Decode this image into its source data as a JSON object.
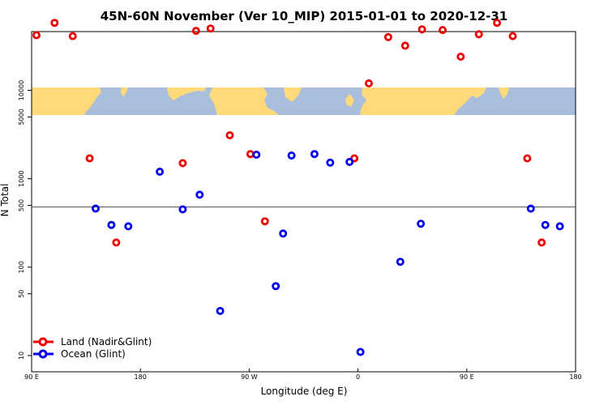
{
  "chart_data": {
    "type": "scatter",
    "title": "45N-60N November (Ver 10_MIP)   2015-01-01 to 2020-12-31",
    "xlabel": "Longitude (deg E)",
    "ylabel": "N Total",
    "x_scale": "linear",
    "y_scale": "log",
    "xlim": [
      90,
      180
    ],
    "x_ticks": [
      {
        "label": "90 E",
        "pos": 0
      },
      {
        "label": "180",
        "pos": 1
      },
      {
        "label": "90 W",
        "pos": 2
      },
      {
        "label": "0",
        "pos": 3
      },
      {
        "label": "90 E",
        "pos": 4
      },
      {
        "label": "180",
        "pos": 5
      }
    ],
    "y_ticks": [
      10,
      50,
      100,
      500,
      1000,
      5000,
      10000
    ],
    "reference_line_y": 500,
    "map_strip": {
      "lat_range": "45N-60N",
      "land_color": "#FFD97A",
      "ocean_color": "#A9BEDB"
    },
    "grid": false,
    "legend_position": "bottom-left",
    "series": [
      {
        "name": "Land (Nadir&Glint)",
        "color": "#EE0000",
        "points": [
          {
            "lon": 94,
            "n": 42000
          },
          {
            "lon": 109,
            "n": 58000
          },
          {
            "lon": 124,
            "n": 41000
          },
          {
            "lon": 138,
            "n": 1700
          },
          {
            "lon": 160,
            "n": 190
          },
          {
            "lon": 215,
            "n": 1500
          },
          {
            "lon": 226,
            "n": 47000
          },
          {
            "lon": 238,
            "n": 50000
          },
          {
            "lon": 254,
            "n": 3100
          },
          {
            "lon": 271,
            "n": 1900
          },
          {
            "lon": 283,
            "n": 330
          },
          {
            "lon": 357,
            "n": 1700
          },
          {
            "lon": 369,
            "n": 12000
          },
          {
            "lon": 385,
            "n": 40000
          },
          {
            "lon": 399,
            "n": 32000
          },
          {
            "lon": 413,
            "n": 49000
          },
          {
            "lon": 430,
            "n": 48000
          },
          {
            "lon": 445,
            "n": 24000
          },
          {
            "lon": 460,
            "n": 43000
          },
          {
            "lon": 475,
            "n": 58000
          },
          {
            "lon": 488,
            "n": 41000
          },
          {
            "lon": 500,
            "n": 1700
          },
          {
            "lon": 512,
            "n": 190
          }
        ]
      },
      {
        "name": "Ocean (Glint)",
        "color": "#0000EE",
        "points": [
          {
            "lon": 143,
            "n": 460
          },
          {
            "lon": 156,
            "n": 300
          },
          {
            "lon": 170,
            "n": 290
          },
          {
            "lon": 196,
            "n": 1200
          },
          {
            "lon": 215,
            "n": 450
          },
          {
            "lon": 229,
            "n": 660
          },
          {
            "lon": 246,
            "n": 32
          },
          {
            "lon": 276,
            "n": 1870
          },
          {
            "lon": 292,
            "n": 61
          },
          {
            "lon": 298,
            "n": 240
          },
          {
            "lon": 305,
            "n": 1830
          },
          {
            "lon": 324,
            "n": 1900
          },
          {
            "lon": 337,
            "n": 1520
          },
          {
            "lon": 353,
            "n": 1550
          },
          {
            "lon": 362,
            "n": 11
          },
          {
            "lon": 395,
            "n": 115
          },
          {
            "lon": 412,
            "n": 310
          },
          {
            "lon": 503,
            "n": 460
          },
          {
            "lon": 515,
            "n": 300
          },
          {
            "lon": 527,
            "n": 290
          }
        ]
      }
    ]
  }
}
